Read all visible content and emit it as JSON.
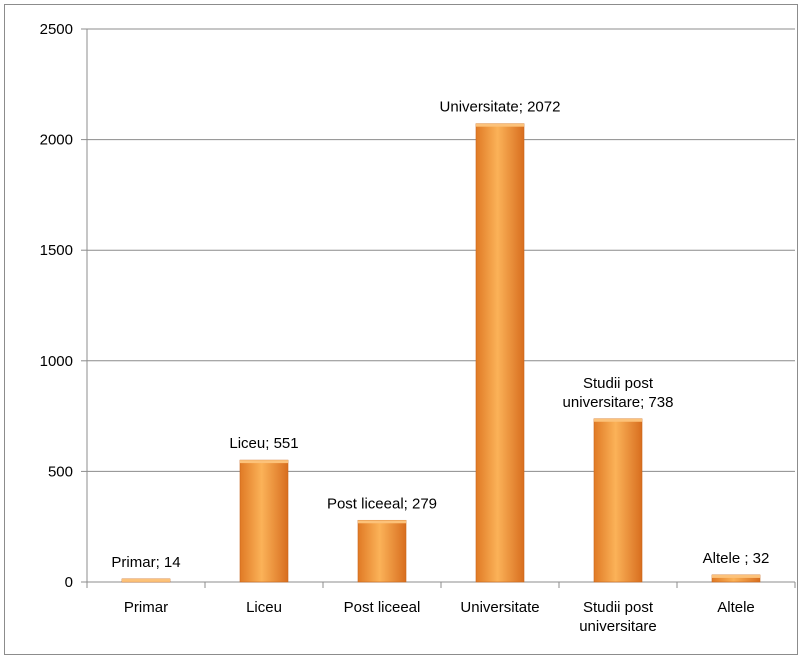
{
  "chart_data": {
    "type": "bar",
    "categories": [
      [
        "Primar"
      ],
      [
        "Liceu"
      ],
      [
        "Post liceeal"
      ],
      [
        "Universitate"
      ],
      [
        "Studii post",
        "universitare"
      ],
      [
        "Altele"
      ]
    ],
    "values": [
      14,
      551,
      279,
      2072,
      738,
      32
    ],
    "data_labels": [
      [
        "Primar; 14"
      ],
      [
        "Liceu; 551"
      ],
      [
        "Post liceeal; 279"
      ],
      [
        "Universitate; 2072"
      ],
      [
        "Studii post",
        "universitare; 738"
      ],
      [
        "Altele  ; 32"
      ]
    ],
    "ylim": [
      0,
      2500
    ],
    "yticks": [
      "0",
      "500",
      "1000",
      "1500",
      "2000",
      "2500"
    ],
    "grid": true,
    "legend": "none",
    "colors": {
      "bar_light": "#fbb258",
      "bar_mid": "#f49634",
      "bar_dark": "#d2691e",
      "grid": "#8c8c8c"
    }
  }
}
